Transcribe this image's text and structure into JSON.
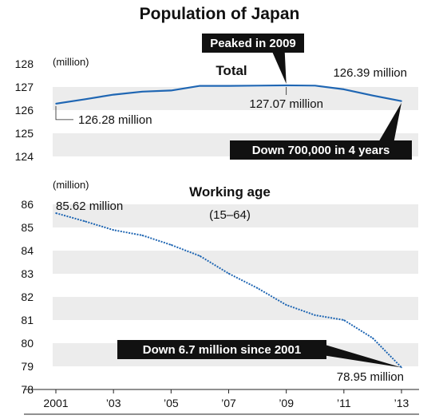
{
  "colors": {
    "line": "#1f66b3",
    "band": "#ececec",
    "callout_bg": "#111111",
    "callout_text": "#ffffff",
    "axis": "#222222"
  },
  "chart_data": {
    "type": "line",
    "title": "Population of Japan",
    "x": [
      2001,
      2002,
      2003,
      2004,
      2005,
      2006,
      2007,
      2008,
      2009,
      2010,
      2011,
      2012,
      2013
    ],
    "x_tick_values": [
      2001,
      2003,
      2005,
      2007,
      2009,
      2011,
      2013
    ],
    "x_tick_labels": [
      "2001",
      "’03",
      "’05",
      "’07",
      "’09",
      "’11",
      "’13"
    ],
    "grid": false,
    "panels": [
      {
        "id": "total",
        "title": "Total",
        "subtitle": "",
        "unit": "(million)",
        "line_style": "solid",
        "ylim": [
          124,
          128
        ],
        "y_ticks": [
          124,
          125,
          126,
          127,
          128
        ],
        "values": [
          126.28,
          126.47,
          126.67,
          126.8,
          126.85,
          127.05,
          127.05,
          127.06,
          127.07,
          127.06,
          126.9,
          126.63,
          126.39
        ],
        "annotations": {
          "start_label": "126.28 million",
          "peak_label": "127.07 million",
          "end_label": "126.39 million"
        },
        "callouts": [
          {
            "id": "peak",
            "text": "Peaked in 2009",
            "x": 2009
          },
          {
            "id": "decline",
            "text": "Down 700,000 in 4 years",
            "x": 2013
          }
        ]
      },
      {
        "id": "working",
        "title": "Working age",
        "subtitle": "(15–64)",
        "unit": "(million)",
        "line_style": "dotted",
        "ylim": [
          78,
          86
        ],
        "y_ticks": [
          78,
          79,
          80,
          81,
          82,
          83,
          84,
          85,
          86
        ],
        "values": [
          85.62,
          85.27,
          84.89,
          84.66,
          84.25,
          83.77,
          83.01,
          82.38,
          81.65,
          81.21,
          81.0,
          80.22,
          78.95
        ],
        "annotations": {
          "start_label": "85.62 million",
          "end_label": "78.95 million"
        },
        "callouts": [
          {
            "id": "drop",
            "text": "Down 6.7 million since 2001",
            "x": 2013
          }
        ]
      }
    ]
  }
}
